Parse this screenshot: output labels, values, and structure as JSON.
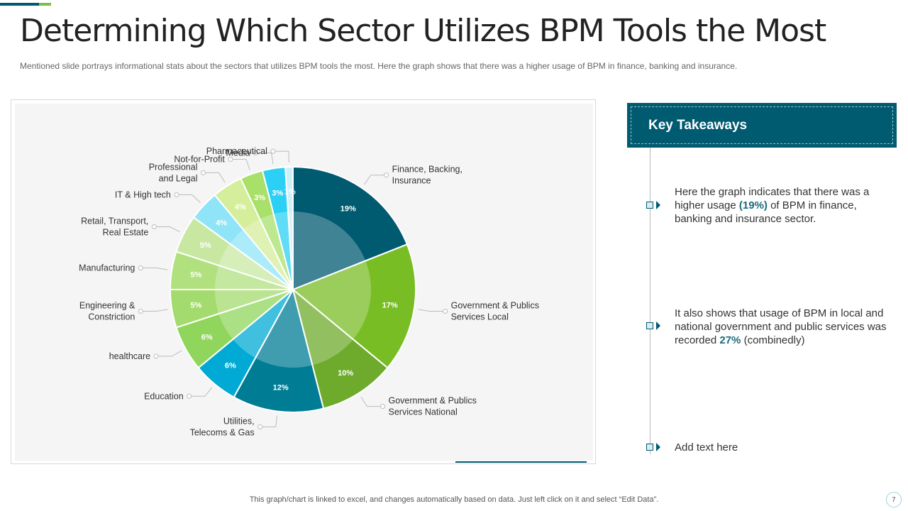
{
  "title": "Determining Which Sector Utilizes BPM Tools the Most",
  "subtitle": "Mentioned slide portrays informational  stats about the sectors that utilizes BPM tools the most. Here the graph  shows that there was a higher usage of BPM in finance, banking and insurance.",
  "chart_data": {
    "type": "pie",
    "title": "",
    "start_angle_deg": 0,
    "direction": "clockwise",
    "slices": [
      {
        "label": "Finance, Backing,\nInsurance",
        "value": 19,
        "label_text": "19%",
        "color": "#005a70"
      },
      {
        "label": "Government  & Publics\nServices Local",
        "value": 17,
        "label_text": "17%",
        "color": "#79bd25"
      },
      {
        "label": "Government  & Publics\nServices National",
        "value": 10,
        "label_text": "10%",
        "color": "#6eab2c"
      },
      {
        "label": "Utilities,\nTelecoms & Gas",
        "value": 12,
        "label_text": "12%",
        "color": "#007c94"
      },
      {
        "label": "Education",
        "value": 6,
        "label_text": "6%",
        "color": "#00aad4"
      },
      {
        "label": "healthcare",
        "value": 6,
        "label_text": "6%",
        "color": "#90d65c"
      },
      {
        "label": "Engineering &\nConstriction",
        "value": 5,
        "label_text": "5%",
        "color": "#a3db6e"
      },
      {
        "label": "Manufacturing",
        "value": 5,
        "label_text": "5%",
        "color": "#b1e07f"
      },
      {
        "label": "Retail, Transport,\nReal Estate",
        "value": 5,
        "label_text": "5%",
        "color": "#c8e8a2"
      },
      {
        "label": "IT & High tech",
        "value": 4,
        "label_text": "4%",
        "color": "#8fe4f8"
      },
      {
        "label": "Professional\nand Legal",
        "value": 4,
        "label_text": "4%",
        "color": "#d5ee9b"
      },
      {
        "label": "Not-for-Profit",
        "value": 3,
        "label_text": "3%",
        "color": "#a8e06a"
      },
      {
        "label": "Media",
        "value": 3,
        "label_text": "3%",
        "color": "#2cd0f4"
      },
      {
        "label": "Pharmaceutical",
        "value": 1,
        "label_text": "1%",
        "color": "#cdeff7"
      }
    ]
  },
  "key_takeaways": {
    "title": "Key Takeaways",
    "item1": {
      "before": "Here the graph indicates that there was a higher usage ",
      "highlight": "(19%)",
      "after": " of BPM in finance, banking and insurance sector."
    },
    "item2": {
      "before": "It also shows that usage of BPM in local and national government  and public services was recorded ",
      "highlight": "27%",
      "after": " (combinedly)"
    },
    "item3": "Add text here"
  },
  "footer": "This graph/chart is linked to excel,  and changes automatically based on data. Just left click on it and select “Edit Data”.",
  "page_number": "7",
  "colors": {
    "accent": "#005a70",
    "green": "#7ac143"
  }
}
